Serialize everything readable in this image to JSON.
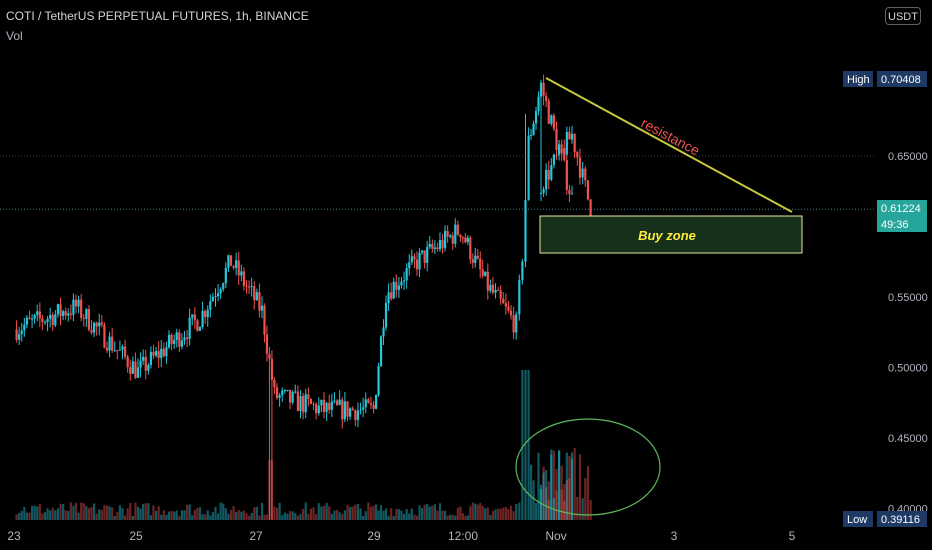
{
  "header": {
    "symbol_line": "COTI / TetherUS PERPETUAL FUTURES, 1h, BINANCE",
    "indicator": "Vol",
    "currency_button": "USDT"
  },
  "price_axis": {
    "ticks": [
      "0.65000",
      "0.55000",
      "0.50000",
      "0.45000",
      "0.40000"
    ],
    "high_label": "High",
    "high_value": "0.70408",
    "low_label": "Low",
    "low_value": "0.39116",
    "last_price": "0.61224",
    "countdown": "49:36"
  },
  "time_axis": {
    "ticks": [
      "23",
      "25",
      "27",
      "29",
      "12:00",
      "Nov",
      "3",
      "5"
    ]
  },
  "annotations": {
    "resistance_label": "resistance",
    "zone_label": "Buy zone"
  },
  "colors": {
    "up": "#26c6da",
    "down": "#ef5350",
    "trendline": "#c8c83c",
    "zone_border": "#e8e4a8",
    "zone_fill": "#16301a",
    "zone_text": "#ffeb3b",
    "resistance_text": "#ef5350",
    "circle": "#5cb85c",
    "last_price_bg": "#26a69a",
    "high_low_bg": "#1e3a64"
  },
  "chart_data": {
    "type": "candlestick",
    "title": "COTI / TetherUS PERPETUAL FUTURES, 1h, BINANCE",
    "ylabel": "USDT",
    "ylim": [
      0.39116,
      0.71
    ],
    "x_ticks": [
      "23",
      "25",
      "27",
      "29",
      "12:00",
      "Nov",
      "3",
      "5"
    ],
    "price_path_anchors": [
      {
        "x": "23",
        "close": 0.527
      },
      {
        "x": "24",
        "close": 0.543
      },
      {
        "x": "24.5",
        "close": 0.52
      },
      {
        "x": "25",
        "close": 0.497
      },
      {
        "x": "26",
        "close": 0.535
      },
      {
        "x": "26.5",
        "close": 0.575
      },
      {
        "x": "27",
        "close": 0.54
      },
      {
        "x": "27.2",
        "close": 0.48
      },
      {
        "x": "28",
        "close": 0.47
      },
      {
        "x": "28.8",
        "close": 0.47
      },
      {
        "x": "29",
        "close": 0.553
      },
      {
        "x": "29.5",
        "close": 0.575
      },
      {
        "x": "12:00",
        "close": 0.598
      },
      {
        "x": "30.6",
        "close": 0.56
      },
      {
        "x": "31.1",
        "close": 0.53
      },
      {
        "x": "31.2",
        "close": 0.58
      },
      {
        "x": "31.3",
        "close": 0.66
      },
      {
        "x": "31.5",
        "close": 0.7
      },
      {
        "x": "Nov",
        "close": 0.62
      },
      {
        "x": "1.5",
        "close": 0.63
      },
      {
        "x": "2",
        "close": 0.665
      },
      {
        "x": "2.3",
        "close": 0.61224
      }
    ],
    "high": 0.70408,
    "low": 0.39116,
    "last_price": 0.61224,
    "volume": "shown as histogram with spike near Nov"
  }
}
